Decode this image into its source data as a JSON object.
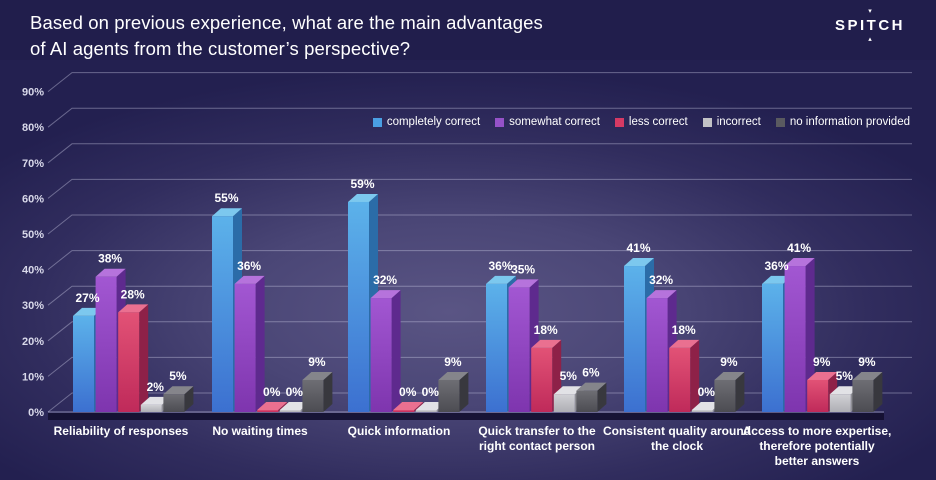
{
  "header": {
    "title_line1": "Based on previous experience, what are the main advantages",
    "title_line2": "of AI agents from the customer’s perspective?",
    "logo_text": "SPITCH",
    "logo_triangle_top": "▾",
    "logo_triangle_bottom": "▴"
  },
  "chart_data": {
    "type": "bar",
    "style": "3d-clustered-column",
    "title": "Based on previous experience, what are the main advantages of AI agents from the customer’s perspective?",
    "xlabel": "",
    "ylabel": "",
    "unit": "%",
    "ylim": [
      0,
      90
    ],
    "grid": true,
    "legend_position": "top",
    "y_ticks": [
      "0%",
      "10%",
      "20%",
      "30%",
      "40%",
      "50%",
      "60%",
      "70%",
      "80%",
      "90%"
    ],
    "categories": [
      "Reliability of responses",
      "No waiting times",
      "Quick information",
      "Quick transfer to the right contact person",
      "Consistent quality around the clock",
      "Access to more expertise, therefore potentially better answers"
    ],
    "categories_wrapped": [
      [
        "Reliability of responses"
      ],
      [
        "No waiting times"
      ],
      [
        "Quick information"
      ],
      [
        "Quick transfer to the",
        "right contact person"
      ],
      [
        "Consistent quality around",
        "the clock"
      ],
      [
        "Access to more expertise,",
        "therefore potentially",
        "better answers"
      ]
    ],
    "series": [
      {
        "name": "completely correct",
        "values": [
          27,
          55,
          59,
          36,
          41,
          36
        ],
        "color": "#4a9fe4",
        "front_top": "#5cb2ea",
        "front_bottom": "#3c70d0",
        "top_face": "#7cc8ee",
        "side_face": "#2b6ca8"
      },
      {
        "name": "somewhat correct",
        "values": [
          38,
          36,
          32,
          35,
          32,
          41
        ],
        "color": "#9552c8",
        "front_top": "#a257d2",
        "front_bottom": "#7e35ae",
        "top_face": "#b673dc",
        "side_face": "#5e2a8e"
      },
      {
        "name": "less correct",
        "values": [
          28,
          0,
          0,
          18,
          18,
          9
        ],
        "color": "#d63a64",
        "front_top": "#e25276",
        "front_bottom": "#bf2a5a",
        "top_face": "#ea7090",
        "side_face": "#8e2148"
      },
      {
        "name": "incorrect",
        "values": [
          2,
          0,
          0,
          5,
          0,
          5
        ],
        "color": "#c2c2c6",
        "front_top": "#d2d2d6",
        "front_bottom": "#aeaeb4",
        "top_face": "#e2e2e6",
        "side_face": "#8e8e94"
      },
      {
        "name": "no information provided",
        "values": [
          5,
          9,
          9,
          6,
          9,
          9
        ],
        "color": "#5a5a60",
        "front_top": "#6e6e74",
        "front_bottom": "#4c4c52",
        "top_face": "#85858b",
        "side_face": "#38383e"
      }
    ]
  }
}
